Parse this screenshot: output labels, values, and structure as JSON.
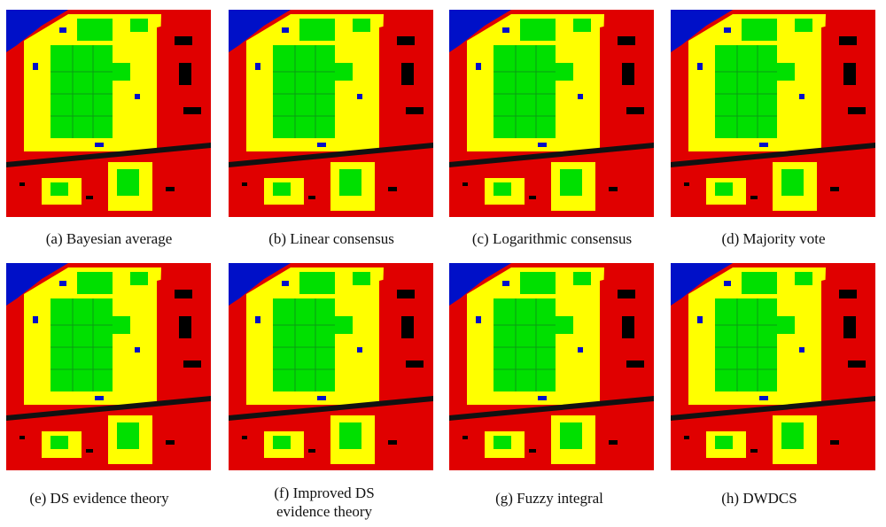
{
  "palette": {
    "red": "#e00000",
    "yellow": "#ffff00",
    "green": "#00e000",
    "blue": "#0010c8",
    "black": "#000000",
    "white": "#ffffff"
  },
  "panels": [
    {
      "caption": "(a) Bayesian average"
    },
    {
      "caption": "(b) Linear consensus"
    },
    {
      "caption": "(c) Logarithmic consensus"
    },
    {
      "caption": "(d) Majority vote"
    },
    {
      "caption": "(e) DS evidence theory"
    },
    {
      "caption_line1": "(f) Improved  DS",
      "caption_line2": "evidence theory"
    },
    {
      "caption": "(g) Fuzzy integral"
    },
    {
      "caption": "(h) DWDCS"
    }
  ]
}
